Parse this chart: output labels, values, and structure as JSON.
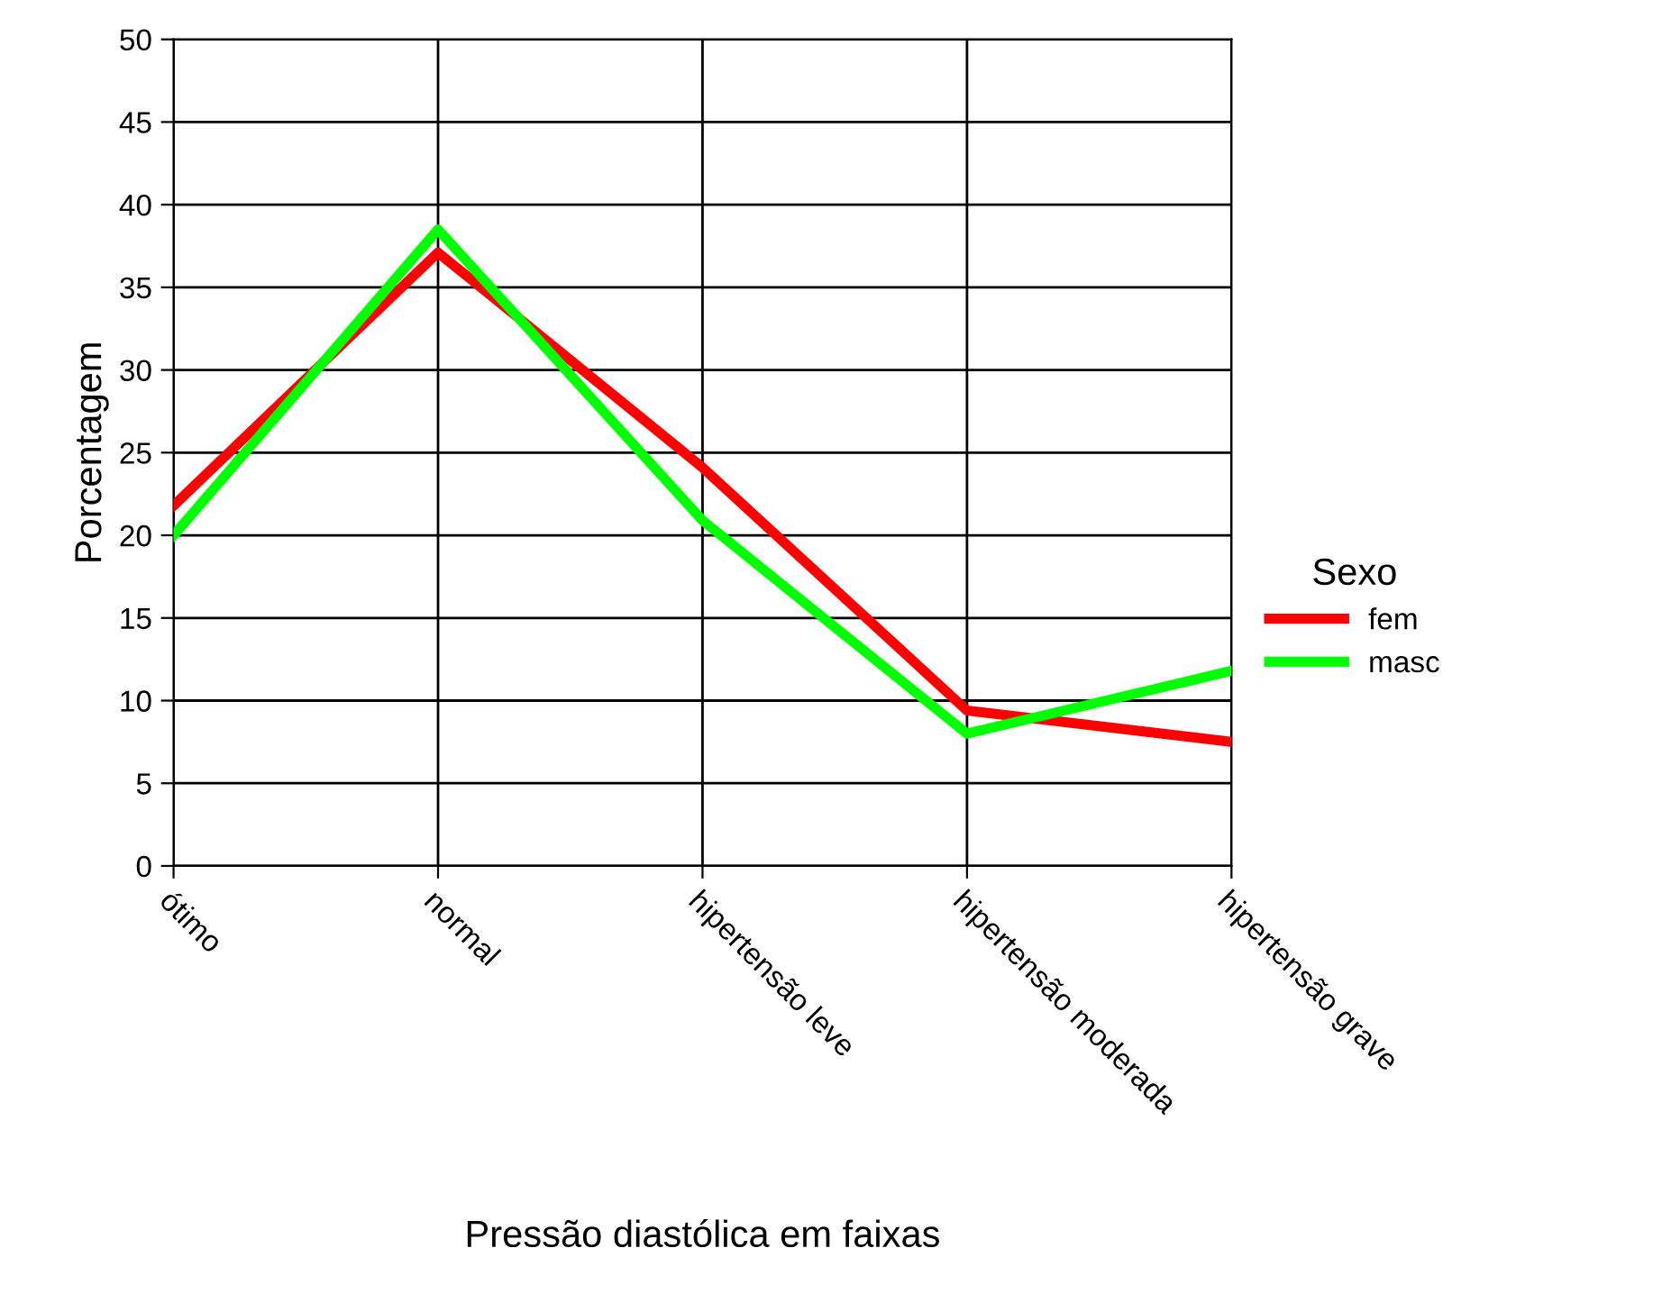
{
  "chart_data": {
    "type": "line",
    "xlabel": "Pressão diastólica em faixas",
    "ylabel": "Porcentagem",
    "legend_title": "Sexo",
    "categories": [
      "ótimo",
      "normal",
      "hipertensão leve",
      "hipertensão moderada",
      "hipertensão grave"
    ],
    "series": [
      {
        "name": "fem",
        "color": "#ff0000",
        "values": [
          21.8,
          37.1,
          24.1,
          9.4,
          7.5
        ]
      },
      {
        "name": "masc",
        "color": "#00ff00",
        "values": [
          20.0,
          38.5,
          20.9,
          8.0,
          11.8
        ]
      }
    ],
    "ylim": [
      0,
      50
    ],
    "yticks": [
      0,
      5,
      10,
      15,
      20,
      25,
      30,
      35,
      40,
      45,
      50
    ],
    "grid": true,
    "legend": "right",
    "marker": "none",
    "line_style": "solid"
  }
}
